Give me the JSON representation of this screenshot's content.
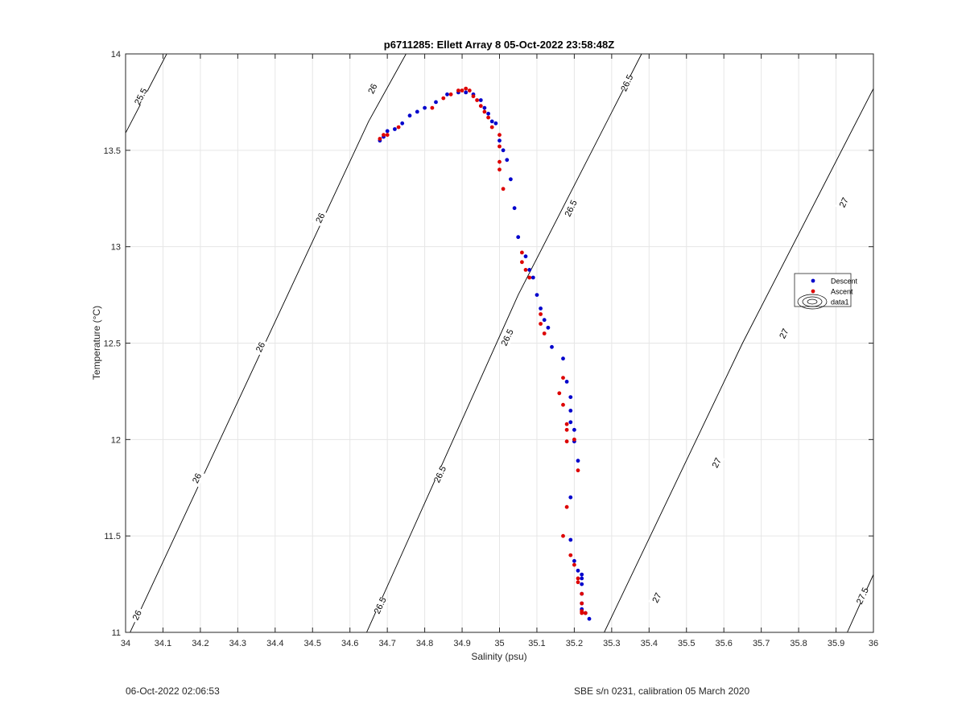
{
  "chart_data": {
    "type": "scatter",
    "title": "p6711285: Ellett Array 8 05-Oct-2022 23:58:48Z",
    "xlabel": "Salinity (psu)",
    "ylabel": "Temperature (°C)",
    "xlim": [
      34,
      36
    ],
    "ylim": [
      11,
      14
    ],
    "grid": true,
    "legend_position": "right",
    "x_ticks": [
      "34",
      "34.1",
      "34.2",
      "34.3",
      "34.4",
      "34.5",
      "34.6",
      "34.7",
      "34.8",
      "34.9",
      "35",
      "35.1",
      "35.2",
      "35.3",
      "35.4",
      "35.5",
      "35.6",
      "35.7",
      "35.8",
      "35.9",
      "36"
    ],
    "y_ticks": [
      "11",
      "11.5",
      "12",
      "12.5",
      "13",
      "13.5",
      "14"
    ],
    "legend": [
      {
        "label": "Descent",
        "color": "#0000cc",
        "marker": "dot"
      },
      {
        "label": "Ascent",
        "color": "#dd0000",
        "marker": "dot"
      },
      {
        "label": "data1",
        "color": "#000000",
        "marker": "contour"
      }
    ],
    "series": [
      {
        "name": "Descent",
        "color": "#0000cc",
        "points": [
          [
            34.68,
            13.55
          ],
          [
            34.69,
            13.57
          ],
          [
            34.7,
            13.6
          ],
          [
            34.72,
            13.61
          ],
          [
            34.74,
            13.64
          ],
          [
            34.76,
            13.68
          ],
          [
            34.78,
            13.7
          ],
          [
            34.8,
            13.72
          ],
          [
            34.83,
            13.75
          ],
          [
            34.86,
            13.79
          ],
          [
            34.89,
            13.8
          ],
          [
            34.91,
            13.8
          ],
          [
            34.93,
            13.79
          ],
          [
            34.95,
            13.76
          ],
          [
            34.96,
            13.72
          ],
          [
            34.97,
            13.69
          ],
          [
            34.98,
            13.65
          ],
          [
            34.99,
            13.64
          ],
          [
            35.0,
            13.55
          ],
          [
            35.01,
            13.5
          ],
          [
            35.02,
            13.45
          ],
          [
            35.03,
            13.35
          ],
          [
            35.04,
            13.2
          ],
          [
            35.05,
            13.05
          ],
          [
            35.07,
            12.95
          ],
          [
            35.08,
            12.88
          ],
          [
            35.09,
            12.84
          ],
          [
            35.1,
            12.75
          ],
          [
            35.11,
            12.68
          ],
          [
            35.12,
            12.62
          ],
          [
            35.13,
            12.58
          ],
          [
            35.14,
            12.48
          ],
          [
            35.17,
            12.42
          ],
          [
            35.18,
            12.3
          ],
          [
            35.19,
            12.22
          ],
          [
            35.19,
            12.15
          ],
          [
            35.19,
            12.09
          ],
          [
            35.2,
            12.05
          ],
          [
            35.2,
            11.99
          ],
          [
            35.21,
            11.89
          ],
          [
            35.19,
            11.7
          ],
          [
            35.19,
            11.48
          ],
          [
            35.2,
            11.37
          ],
          [
            35.21,
            11.32
          ],
          [
            35.22,
            11.3
          ],
          [
            35.22,
            11.28
          ],
          [
            35.22,
            11.25
          ],
          [
            35.22,
            11.2
          ],
          [
            35.22,
            11.15
          ],
          [
            35.22,
            11.12
          ],
          [
            35.23,
            11.1
          ],
          [
            35.24,
            11.07
          ]
        ]
      },
      {
        "name": "Ascent",
        "color": "#dd0000",
        "points": [
          [
            34.68,
            13.56
          ],
          [
            34.69,
            13.58
          ],
          [
            34.7,
            13.58
          ],
          [
            34.73,
            13.62
          ],
          [
            34.82,
            13.72
          ],
          [
            34.85,
            13.77
          ],
          [
            34.87,
            13.79
          ],
          [
            34.89,
            13.81
          ],
          [
            34.9,
            13.81
          ],
          [
            34.91,
            13.82
          ],
          [
            34.92,
            13.81
          ],
          [
            34.93,
            13.78
          ],
          [
            34.94,
            13.76
          ],
          [
            34.95,
            13.73
          ],
          [
            34.96,
            13.7
          ],
          [
            34.97,
            13.67
          ],
          [
            34.98,
            13.62
          ],
          [
            35.0,
            13.58
          ],
          [
            35.0,
            13.52
          ],
          [
            35.0,
            13.44
          ],
          [
            35.0,
            13.4
          ],
          [
            35.01,
            13.3
          ],
          [
            35.06,
            12.97
          ],
          [
            35.06,
            12.92
          ],
          [
            35.07,
            12.88
          ],
          [
            35.08,
            12.84
          ],
          [
            35.11,
            12.65
          ],
          [
            35.11,
            12.6
          ],
          [
            35.12,
            12.55
          ],
          [
            35.16,
            12.24
          ],
          [
            35.17,
            12.18
          ],
          [
            35.17,
            12.32
          ],
          [
            35.18,
            12.05
          ],
          [
            35.18,
            11.99
          ],
          [
            35.2,
            12.0
          ],
          [
            35.21,
            11.84
          ],
          [
            35.18,
            12.08
          ],
          [
            35.18,
            11.65
          ],
          [
            35.17,
            11.5
          ],
          [
            35.19,
            11.4
          ],
          [
            35.2,
            11.35
          ],
          [
            35.21,
            11.28
          ],
          [
            35.21,
            11.26
          ],
          [
            35.22,
            11.2
          ],
          [
            35.22,
            11.15
          ],
          [
            35.22,
            11.11
          ],
          [
            35.22,
            11.1
          ],
          [
            35.23,
            11.1
          ]
        ]
      }
    ],
    "isopycnals": [
      {
        "label": "25.5",
        "points": [
          [
            34.0,
            13.59
          ],
          [
            34.11,
            14.0
          ]
        ]
      },
      {
        "label": "26",
        "points": [
          [
            34.0,
            10.95
          ],
          [
            34.65,
            13.65
          ],
          [
            34.75,
            14.0
          ]
        ]
      },
      {
        "label": "26.5",
        "points": [
          [
            34.64,
            10.98
          ],
          [
            35.05,
            12.75
          ],
          [
            35.38,
            14.0
          ]
        ]
      },
      {
        "label": "27",
        "points": [
          [
            35.28,
            11.0
          ],
          [
            35.65,
            12.5
          ],
          [
            36.0,
            13.82
          ]
        ]
      },
      {
        "label": "27.5",
        "points": [
          [
            35.93,
            11.0
          ],
          [
            36.0,
            11.3
          ]
        ]
      }
    ],
    "isopycnal_labels": [
      {
        "text": "25.5",
        "at": [
          34.04,
          13.78
        ]
      },
      {
        "text": "26",
        "at": [
          34.66,
          13.82
        ]
      },
      {
        "text": "26",
        "at": [
          34.52,
          13.15
        ]
      },
      {
        "text": "26",
        "at": [
          34.36,
          12.48
        ]
      },
      {
        "text": "26",
        "at": [
          34.19,
          11.8
        ]
      },
      {
        "text": "26",
        "at": [
          34.03,
          11.09
        ]
      },
      {
        "text": "26.5",
        "at": [
          35.34,
          13.85
        ]
      },
      {
        "text": "26.5",
        "at": [
          35.19,
          13.2
        ]
      },
      {
        "text": "26.5",
        "at": [
          35.02,
          12.53
        ]
      },
      {
        "text": "26.5",
        "at": [
          34.84,
          11.82
        ]
      },
      {
        "text": "26.5",
        "at": [
          34.68,
          11.14
        ]
      },
      {
        "text": "27",
        "at": [
          35.92,
          13.23
        ]
      },
      {
        "text": "27",
        "at": [
          35.76,
          12.55
        ]
      },
      {
        "text": "27",
        "at": [
          35.58,
          11.88
        ]
      },
      {
        "text": "27",
        "at": [
          35.42,
          11.18
        ]
      },
      {
        "text": "27.5",
        "at": [
          35.97,
          11.19
        ]
      }
    ]
  },
  "footer": {
    "timestamp": "06-Oct-2022 02:06:53",
    "sensor": "SBE s/n 0231, calibration 05 March 2020"
  }
}
